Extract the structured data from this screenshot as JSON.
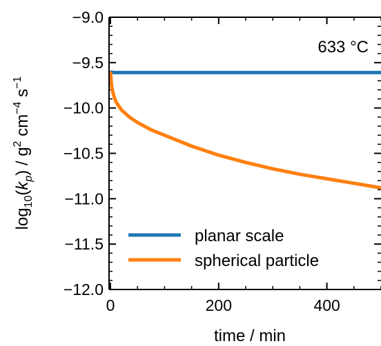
{
  "chart_data": {
    "type": "line",
    "xlabel": "time / min",
    "ylabel": {
      "base": "log",
      "sub": "10",
      "open": "(",
      "k": "k",
      "p": "p",
      "close": ")",
      "rest1": " / g",
      "exp2": "2",
      "rest2": " cm",
      "exp4": "−4",
      "rest3": " s",
      "exp1": "−1"
    },
    "xlim": [
      0,
      500
    ],
    "ylim": [
      -12.0,
      -9.0
    ],
    "xticks": [
      0,
      200,
      400
    ],
    "xtick_labels": [
      "0",
      "200",
      "400"
    ],
    "yticks": [
      -9.0,
      -9.5,
      -10.0,
      -10.5,
      -11.0,
      -11.5,
      -12.0
    ],
    "ytick_labels": [
      "−9.0",
      "−9.5",
      "−10.0",
      "−10.5",
      "−11.0",
      "−11.5",
      "−12.0"
    ],
    "annotation": "633 °C",
    "legend_position": "lower-left",
    "series": [
      {
        "name": "planar scale",
        "color": "#1f77b4",
        "x": [
          0,
          5,
          10,
          20,
          50,
          100,
          200,
          300,
          400,
          500
        ],
        "y": [
          -9.6,
          -9.61,
          -9.61,
          -9.61,
          -9.61,
          -9.61,
          -9.61,
          -9.61,
          -9.61,
          -9.61
        ]
      },
      {
        "name": "spherical particle",
        "color": "#ff7f0e",
        "x": [
          0,
          2,
          5,
          10,
          20,
          35,
          50,
          75,
          100,
          150,
          200,
          250,
          300,
          350,
          400,
          450,
          500
        ],
        "y": [
          -9.6,
          -9.75,
          -9.84,
          -9.93,
          -10.02,
          -10.1,
          -10.16,
          -10.24,
          -10.3,
          -10.42,
          -10.52,
          -10.6,
          -10.67,
          -10.73,
          -10.78,
          -10.83,
          -10.88
        ]
      }
    ]
  }
}
